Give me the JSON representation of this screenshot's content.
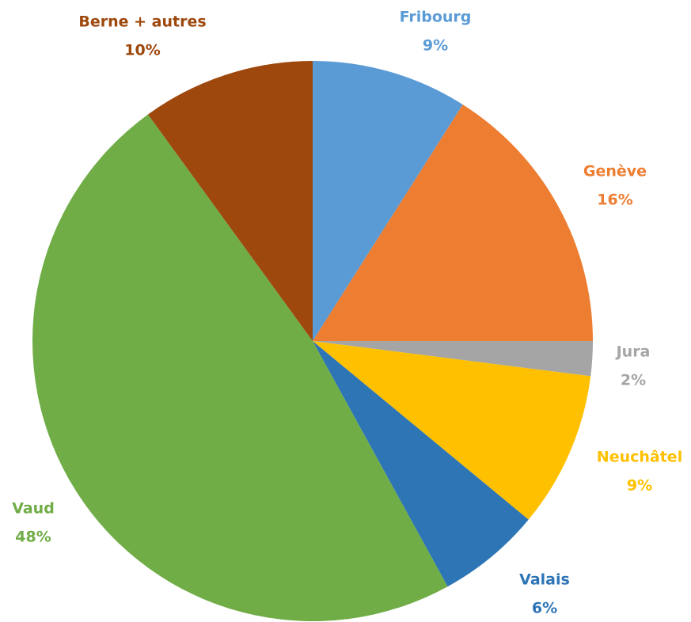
{
  "chart_data": {
    "type": "pie",
    "categories": [
      "Fribourg",
      "Genève",
      "Jura",
      "Neuchâtel",
      "Valais",
      "Vaud",
      "Berne + autres"
    ],
    "values": [
      9,
      16,
      2,
      9,
      6,
      48,
      10
    ],
    "value_labels": [
      "9%",
      "16%",
      "2%",
      "9%",
      "6%",
      "48%",
      "10%"
    ],
    "colors": [
      "#5b9bd5",
      "#ed7d31",
      "#a5a5a5",
      "#ffc000",
      "#2e75b6",
      "#70ad47",
      "#9e480e"
    ]
  }
}
